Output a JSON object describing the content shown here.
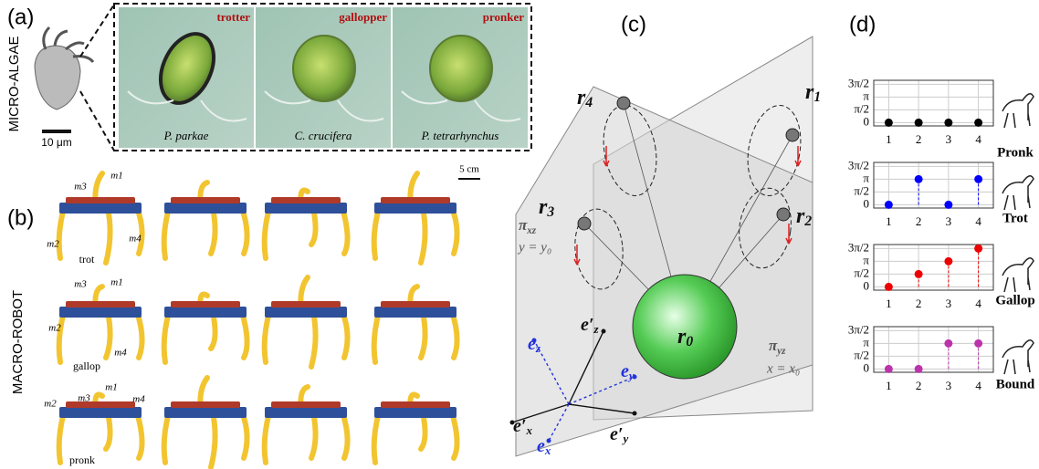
{
  "panels": {
    "a": "(a)",
    "b": "(b)",
    "c": "(c)",
    "d": "(d)"
  },
  "micro_algae": {
    "side_label": "MICRO-ALGAE",
    "scale": "10 μm",
    "cells": [
      {
        "gait": "trotter",
        "species": "P. parkae"
      },
      {
        "gait": "gallopper",
        "species": "C. crucifera"
      },
      {
        "gait": "pronker",
        "species": "P. tetrarhynchus"
      }
    ]
  },
  "macro_robot": {
    "side_label": "MACRO-ROBOT",
    "scale": "5 cm",
    "rows": [
      {
        "gait": "trot",
        "legs": [
          "m1",
          "m2",
          "m3",
          "m4"
        ]
      },
      {
        "gait": "gallop",
        "legs": [
          "m1",
          "m2",
          "m3",
          "m4"
        ]
      },
      {
        "gait": "pronk",
        "legs": [
          "m1",
          "m2",
          "m3",
          "m4"
        ]
      }
    ]
  },
  "geometry": {
    "points": [
      {
        "symbol": "r",
        "index": "4"
      },
      {
        "symbol": "r",
        "index": "1"
      },
      {
        "symbol": "r",
        "index": "3"
      },
      {
        "symbol": "r",
        "index": "2"
      },
      {
        "symbol": "r",
        "index": "0"
      }
    ],
    "planes": [
      {
        "symbol": "π",
        "sub": "xz",
        "equation": "y = y₀"
      },
      {
        "symbol": "π",
        "sub": "yz",
        "equation": "x = x₀"
      }
    ],
    "axes": [
      {
        "symbol": "e′",
        "sub": "z"
      },
      {
        "symbol": "e",
        "sub": "z"
      },
      {
        "symbol": "e",
        "sub": "y"
      },
      {
        "symbol": "e′",
        "sub": "x"
      },
      {
        "symbol": "e",
        "sub": "x"
      },
      {
        "symbol": "e′",
        "sub": "y"
      }
    ]
  },
  "chart_data": [
    {
      "type": "stem",
      "gait": "Pronk",
      "x": [
        1,
        2,
        3,
        4
      ],
      "values": [
        0,
        0,
        0,
        0
      ],
      "color": "#000000",
      "xlim": [
        0.5,
        4.5
      ],
      "xticks": [
        1,
        2,
        3,
        4
      ],
      "ylim": [
        -0.4,
        5.2
      ],
      "yticks": [
        0,
        {
          "value": 1.5708,
          "label": "π/2"
        },
        {
          "value": 3.1416,
          "label": "π"
        },
        {
          "value": 4.7124,
          "label": "3π/2"
        }
      ],
      "grid": true
    },
    {
      "type": "stem",
      "gait": "Trot",
      "x": [
        1,
        2,
        3,
        4
      ],
      "values": [
        0,
        3.1416,
        0,
        3.1416
      ],
      "color": "#0000ff",
      "xlim": [
        0.5,
        4.5
      ],
      "xticks": [
        1,
        2,
        3,
        4
      ],
      "ylim": [
        -0.4,
        5.2
      ],
      "yticks": [
        0,
        {
          "value": 1.5708,
          "label": "π/2"
        },
        {
          "value": 3.1416,
          "label": "π"
        },
        {
          "value": 4.7124,
          "label": "3π/2"
        }
      ],
      "grid": true
    },
    {
      "type": "stem",
      "gait": "Gallop",
      "x": [
        1,
        2,
        3,
        4
      ],
      "values": [
        0,
        1.5708,
        3.1416,
        4.7124
      ],
      "color": "#ee0000",
      "xlim": [
        0.5,
        4.5
      ],
      "xticks": [
        1,
        2,
        3,
        4
      ],
      "ylim": [
        -0.4,
        5.2
      ],
      "yticks": [
        0,
        {
          "value": 1.5708,
          "label": "π/2"
        },
        {
          "value": 3.1416,
          "label": "π"
        },
        {
          "value": 4.7124,
          "label": "3π/2"
        }
      ],
      "grid": true
    },
    {
      "type": "stem",
      "gait": "Bound",
      "x": [
        1,
        2,
        3,
        4
      ],
      "values": [
        0,
        0,
        3.1416,
        3.1416
      ],
      "color": "#bb33aa",
      "xlim": [
        0.5,
        4.5
      ],
      "xticks": [
        1,
        2,
        3,
        4
      ],
      "ylim": [
        -0.4,
        5.2
      ],
      "yticks": [
        0,
        {
          "value": 1.5708,
          "label": "π/2"
        },
        {
          "value": 3.1416,
          "label": "π"
        },
        {
          "value": 4.7124,
          "label": "3π/2"
        }
      ],
      "grid": true
    }
  ]
}
